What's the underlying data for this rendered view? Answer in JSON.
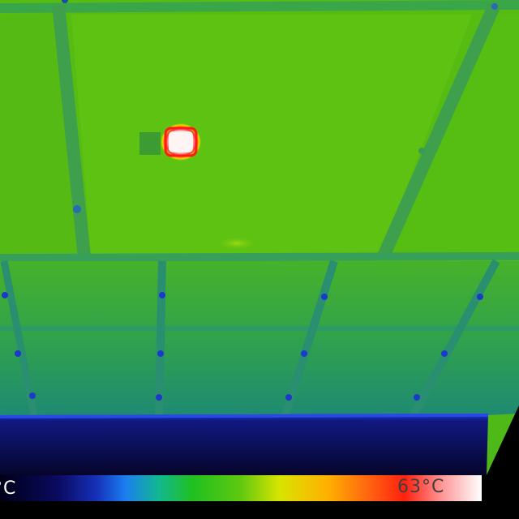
{
  "scale": {
    "min_label": "°C",
    "max_label": "63°C",
    "colors": [
      "#000018",
      "#0a0a60",
      "#1630b8",
      "#1a7ef0",
      "#12b890",
      "#20c020",
      "#60c810",
      "#d8e400",
      "#ffb000",
      "#ff6010",
      "#ff2010",
      "#ff9a9a",
      "#ffffff"
    ]
  },
  "image": {
    "panel_color": "#5cbe12",
    "frame_color": "#2e9a5a",
    "lower_panel_color": "#3aa838",
    "floor_color": "#0a0a50",
    "hotspot_color": "#ffffff",
    "hotspot_ring_color": "#ff2020"
  }
}
